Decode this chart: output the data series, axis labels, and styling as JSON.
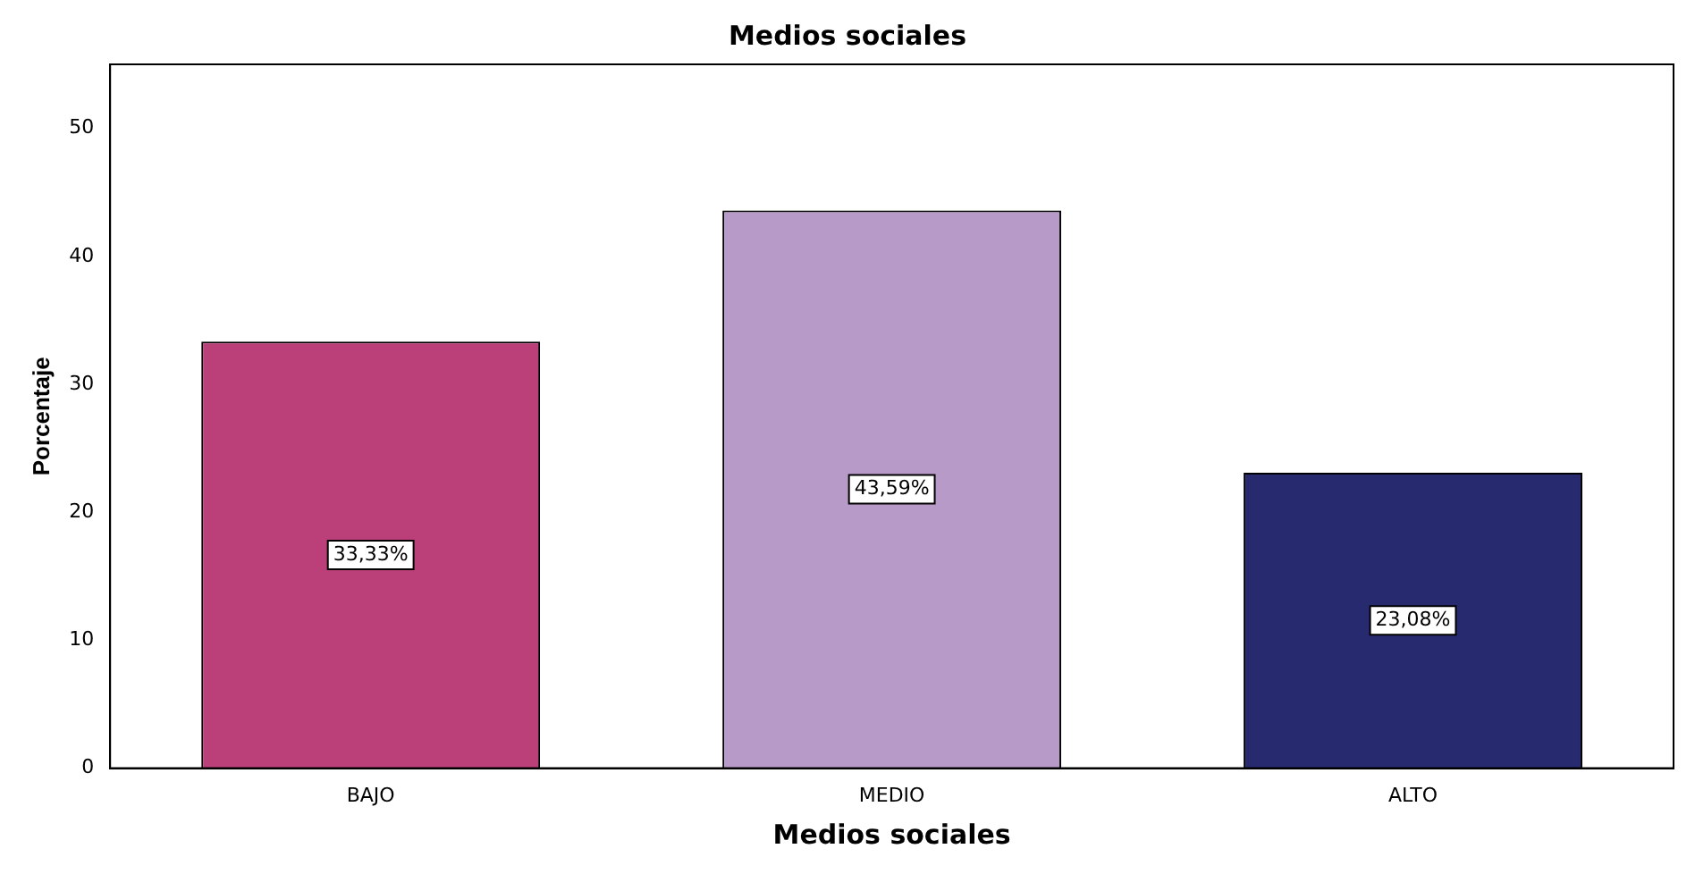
{
  "chart_data": {
    "type": "bar",
    "title": "Medios sociales",
    "xlabel": "Medios sociales",
    "ylabel": "Porcentaje",
    "categories": [
      "BAJO",
      "MEDIO",
      "ALTO"
    ],
    "values": [
      33.33,
      43.59,
      23.08
    ],
    "colors": [
      "#bb3f78",
      "#b89ac8",
      "#272a6e"
    ],
    "value_labels": [
      "33,33%",
      "43,59%",
      "23,08%"
    ],
    "ylim": [
      0,
      55
    ],
    "yticks": [
      0,
      10,
      20,
      30,
      40,
      50
    ],
    "grid": false,
    "legend": false
  }
}
